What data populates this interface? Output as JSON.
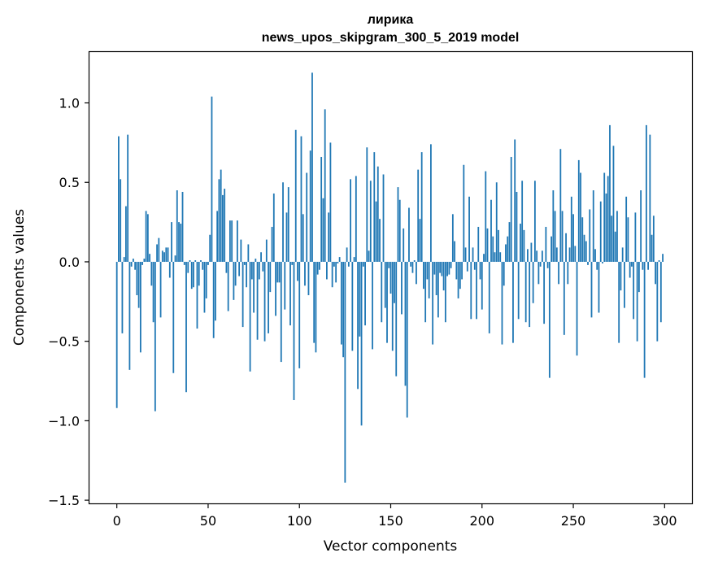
{
  "chart_data": {
    "type": "bar",
    "title": "лирика",
    "subtitle": "news_upos_skipgram_300_5_2019 model",
    "xlabel": "Vector components",
    "ylabel": "Components values",
    "xlim": [
      -15,
      315
    ],
    "ylim": [
      -1.52,
      1.32
    ],
    "xticks": [
      0,
      50,
      100,
      150,
      200,
      250,
      300
    ],
    "yticks": [
      -1.5,
      -1.0,
      -0.5,
      0.0,
      0.5,
      1.0
    ],
    "ytick_labels": [
      "−1.5",
      "−1.0",
      "−0.5",
      "0.0",
      "0.5",
      "1.0"
    ],
    "grid": false,
    "bar_color": "#1f77b4",
    "values": [
      -0.92,
      0.79,
      0.52,
      -0.45,
      0.03,
      0.35,
      0.8,
      -0.68,
      -0.03,
      0.02,
      -0.05,
      -0.21,
      -0.29,
      -0.57,
      -0.02,
      0.02,
      0.32,
      0.3,
      0.05,
      -0.15,
      -0.38,
      -0.94,
      0.11,
      0.15,
      -0.35,
      0.07,
      0.06,
      0.09,
      0.09,
      -0.1,
      0.25,
      -0.7,
      0.04,
      0.45,
      0.25,
      0.24,
      0.44,
      -0.02,
      -0.82,
      -0.07,
      0.01,
      -0.17,
      -0.16,
      0.01,
      -0.42,
      -0.15,
      0.01,
      -0.05,
      -0.32,
      -0.23,
      -0.02,
      0.17,
      1.04,
      -0.48,
      -0.37,
      0.32,
      0.52,
      0.58,
      0.42,
      0.46,
      -0.07,
      -0.31,
      0.26,
      0.26,
      -0.24,
      -0.15,
      0.26,
      -0.09,
      0.14,
      -0.41,
      -0.02,
      -0.16,
      0.11,
      -0.69,
      -0.11,
      -0.32,
      0.02,
      -0.49,
      -0.11,
      0.06,
      -0.06,
      -0.5,
      0.14,
      -0.45,
      -0.19,
      0.22,
      0.43,
      -0.34,
      -0.13,
      -0.13,
      -0.63,
      0.5,
      -0.3,
      0.31,
      0.47,
      -0.4,
      -0.02,
      -0.87,
      0.83,
      -0.12,
      -0.67,
      0.79,
      0.3,
      -0.15,
      0.56,
      -0.21,
      0.7,
      1.19,
      -0.51,
      -0.57,
      -0.08,
      -0.05,
      0.66,
      0.4,
      0.96,
      -0.11,
      0.31,
      0.75,
      -0.16,
      -0.03,
      -0.13,
      -0.01,
      0.03,
      -0.52,
      -0.6,
      -1.39,
      0.09,
      -0.03,
      0.52,
      -0.56,
      0.03,
      0.54,
      -0.8,
      -0.47,
      -1.03,
      -0.03,
      -0.4,
      0.72,
      0.07,
      0.51,
      -0.55,
      0.69,
      0.38,
      0.6,
      0.27,
      -0.38,
      0.55,
      -0.29,
      -0.51,
      -0.04,
      -0.2,
      -0.56,
      -0.26,
      -0.72,
      0.47,
      0.39,
      -0.33,
      0.21,
      -0.78,
      -0.98,
      0.34,
      -0.03,
      -0.07,
      0.01,
      -0.14,
      0.58,
      0.27,
      0.69,
      -0.17,
      -0.38,
      -0.11,
      -0.23,
      0.74,
      -0.52,
      -0.08,
      -0.21,
      -0.35,
      -0.07,
      -0.09,
      -0.18,
      -0.38,
      -0.09,
      -0.08,
      -0.04,
      0.3,
      0.13,
      -0.11,
      -0.23,
      -0.17,
      -0.11,
      0.61,
      0.09,
      -0.06,
      0.41,
      -0.36,
      0.09,
      -0.05,
      -0.36,
      0.22,
      -0.11,
      -0.3,
      0.05,
      0.57,
      0.21,
      -0.45,
      0.39,
      0.16,
      0.06,
      0.5,
      0.2,
      0.06,
      -0.52,
      -0.15,
      0.11,
      0.16,
      0.25,
      0.66,
      -0.51,
      0.77,
      0.44,
      -0.36,
      0.24,
      0.51,
      0.2,
      -0.38,
      0.08,
      -0.41,
      0.12,
      -0.26,
      0.51,
      0.07,
      -0.14,
      -0.03,
      0.07,
      -0.39,
      0.22,
      -0.04,
      -0.73,
      0.16,
      0.45,
      0.32,
      0.09,
      -0.14,
      0.71,
      0.32,
      -0.46,
      0.18,
      -0.14,
      0.09,
      0.41,
      0.3,
      0.1,
      -0.59,
      0.64,
      0.56,
      0.28,
      0.17,
      0.13,
      -0.02,
      0.33,
      -0.35,
      0.45,
      0.08,
      -0.05,
      -0.32,
      0.38,
      -0.01,
      0.56,
      0.43,
      0.54,
      0.86,
      0.29,
      0.73,
      0.19,
      0.32,
      -0.51,
      -0.18,
      0.09,
      -0.29,
      0.41,
      0.28,
      -0.1,
      -0.03,
      -0.36,
      0.31,
      -0.5,
      -0.19,
      0.45,
      -0.05,
      -0.73,
      0.86,
      -0.05,
      0.8,
      0.17,
      0.29,
      -0.14,
      -0.5,
      0.01,
      -0.38,
      0.05
    ]
  }
}
